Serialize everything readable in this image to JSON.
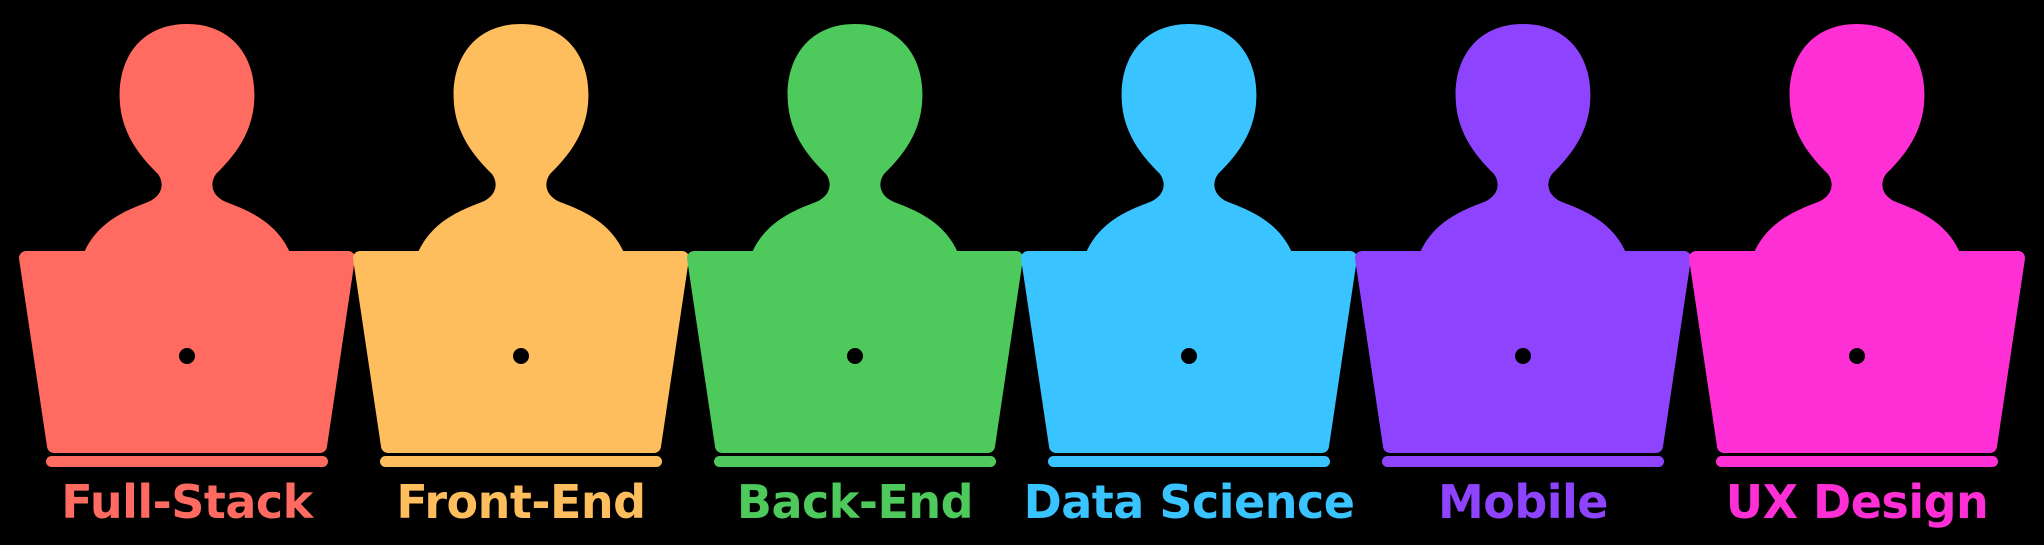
{
  "roles": [
    {
      "label": "Full-Stack",
      "color": "#FF6B61",
      "icon": "developer-at-laptop-icon"
    },
    {
      "label": "Front-End",
      "color": "#FFBE5E",
      "icon": "developer-at-laptop-icon"
    },
    {
      "label": "Back-End",
      "color": "#4EC95C",
      "icon": "developer-at-laptop-icon"
    },
    {
      "label": "Data Science",
      "color": "#39C3FF",
      "icon": "developer-at-laptop-icon"
    },
    {
      "label": "Mobile",
      "color": "#8E44FF",
      "icon": "developer-at-laptop-icon"
    },
    {
      "label": "UX Design",
      "color": "#FF2FD6",
      "icon": "developer-at-laptop-icon"
    }
  ]
}
